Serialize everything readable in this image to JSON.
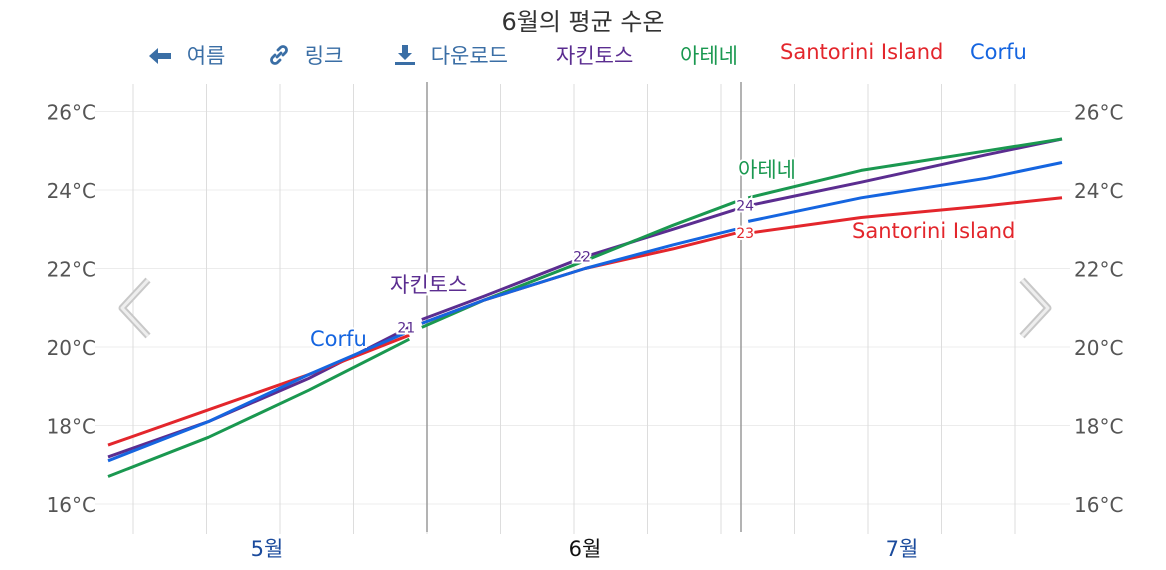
{
  "title": "6월의 평균 수온",
  "toolbar": {
    "back_label": "여름",
    "link_label": "링크",
    "download_label": "다운로드",
    "back_icon": "arrow-left-icon",
    "link_icon": "link-icon",
    "download_icon": "download-icon"
  },
  "colors": {
    "자킨토스": "#5b2d90",
    "아테네": "#1a9850",
    "Santorini Island": "#e3262c",
    "Corfu": "#1565e0",
    "months_active": "#1a4a9c",
    "month_current": "#111111"
  },
  "chart_data": {
    "type": "line",
    "title": "6월의 평균 수온",
    "ylim": [
      15.3,
      26.8
    ],
    "y_ticks": [
      "16°C",
      "18°C",
      "20°C",
      "22°C",
      "24°C",
      "26°C"
    ],
    "y_tick_values": [
      16,
      18,
      20,
      22,
      24,
      26
    ],
    "x_labels": [
      "5월",
      "6월",
      "7월"
    ],
    "x_range_days": [
      0,
      76
    ],
    "grid": true,
    "legend_position": "top",
    "segments": [
      {
        "start": 0,
        "end": 24,
        "label_day": 24
      },
      {
        "start": 25,
        "end": 50,
        "label_day": 38
      },
      {
        "start": 51,
        "end": 76,
        "label_day": 51
      }
    ],
    "series": [
      {
        "name": "자킨토스",
        "end_label": "자킨토스",
        "x": [
          0,
          8,
          16,
          24,
          25,
          30,
          38,
          45,
          50,
          51,
          60,
          70,
          76
        ],
        "values": [
          17.2,
          18.1,
          19.2,
          20.5,
          20.7,
          21.3,
          22.3,
          23.0,
          23.5,
          23.6,
          24.2,
          24.9,
          25.3
        ],
        "point_labels": [
          {
            "x": 24,
            "text": "21"
          },
          {
            "x": 38,
            "text": "22"
          },
          {
            "x": 51,
            "text": "24"
          }
        ]
      },
      {
        "name": "아테네",
        "end_label": "아테네",
        "x": [
          0,
          8,
          16,
          24,
          25,
          30,
          38,
          45,
          50,
          51,
          60,
          70,
          76
        ],
        "values": [
          16.7,
          17.7,
          18.9,
          20.2,
          20.5,
          21.2,
          22.2,
          23.1,
          23.7,
          23.8,
          24.5,
          25.0,
          25.3
        ],
        "point_labels": []
      },
      {
        "name": "Santorini Island",
        "end_label": "Santorini Island",
        "x": [
          0,
          8,
          16,
          24,
          25,
          30,
          38,
          45,
          50,
          51,
          60,
          70,
          76
        ],
        "values": [
          17.5,
          18.4,
          19.3,
          20.3,
          20.6,
          21.2,
          22.0,
          22.5,
          22.9,
          22.9,
          23.3,
          23.6,
          23.8
        ],
        "point_labels": [
          {
            "x": 51,
            "text": "23"
          }
        ]
      },
      {
        "name": "Corfu",
        "end_label": "Corfu",
        "x": [
          0,
          8,
          16,
          24,
          25,
          30,
          38,
          45,
          50,
          51,
          60,
          70,
          76
        ],
        "values": [
          17.1,
          18.1,
          19.3,
          20.4,
          20.6,
          21.2,
          22.0,
          22.6,
          23.0,
          23.2,
          23.8,
          24.3,
          24.7
        ],
        "point_labels": []
      }
    ]
  }
}
